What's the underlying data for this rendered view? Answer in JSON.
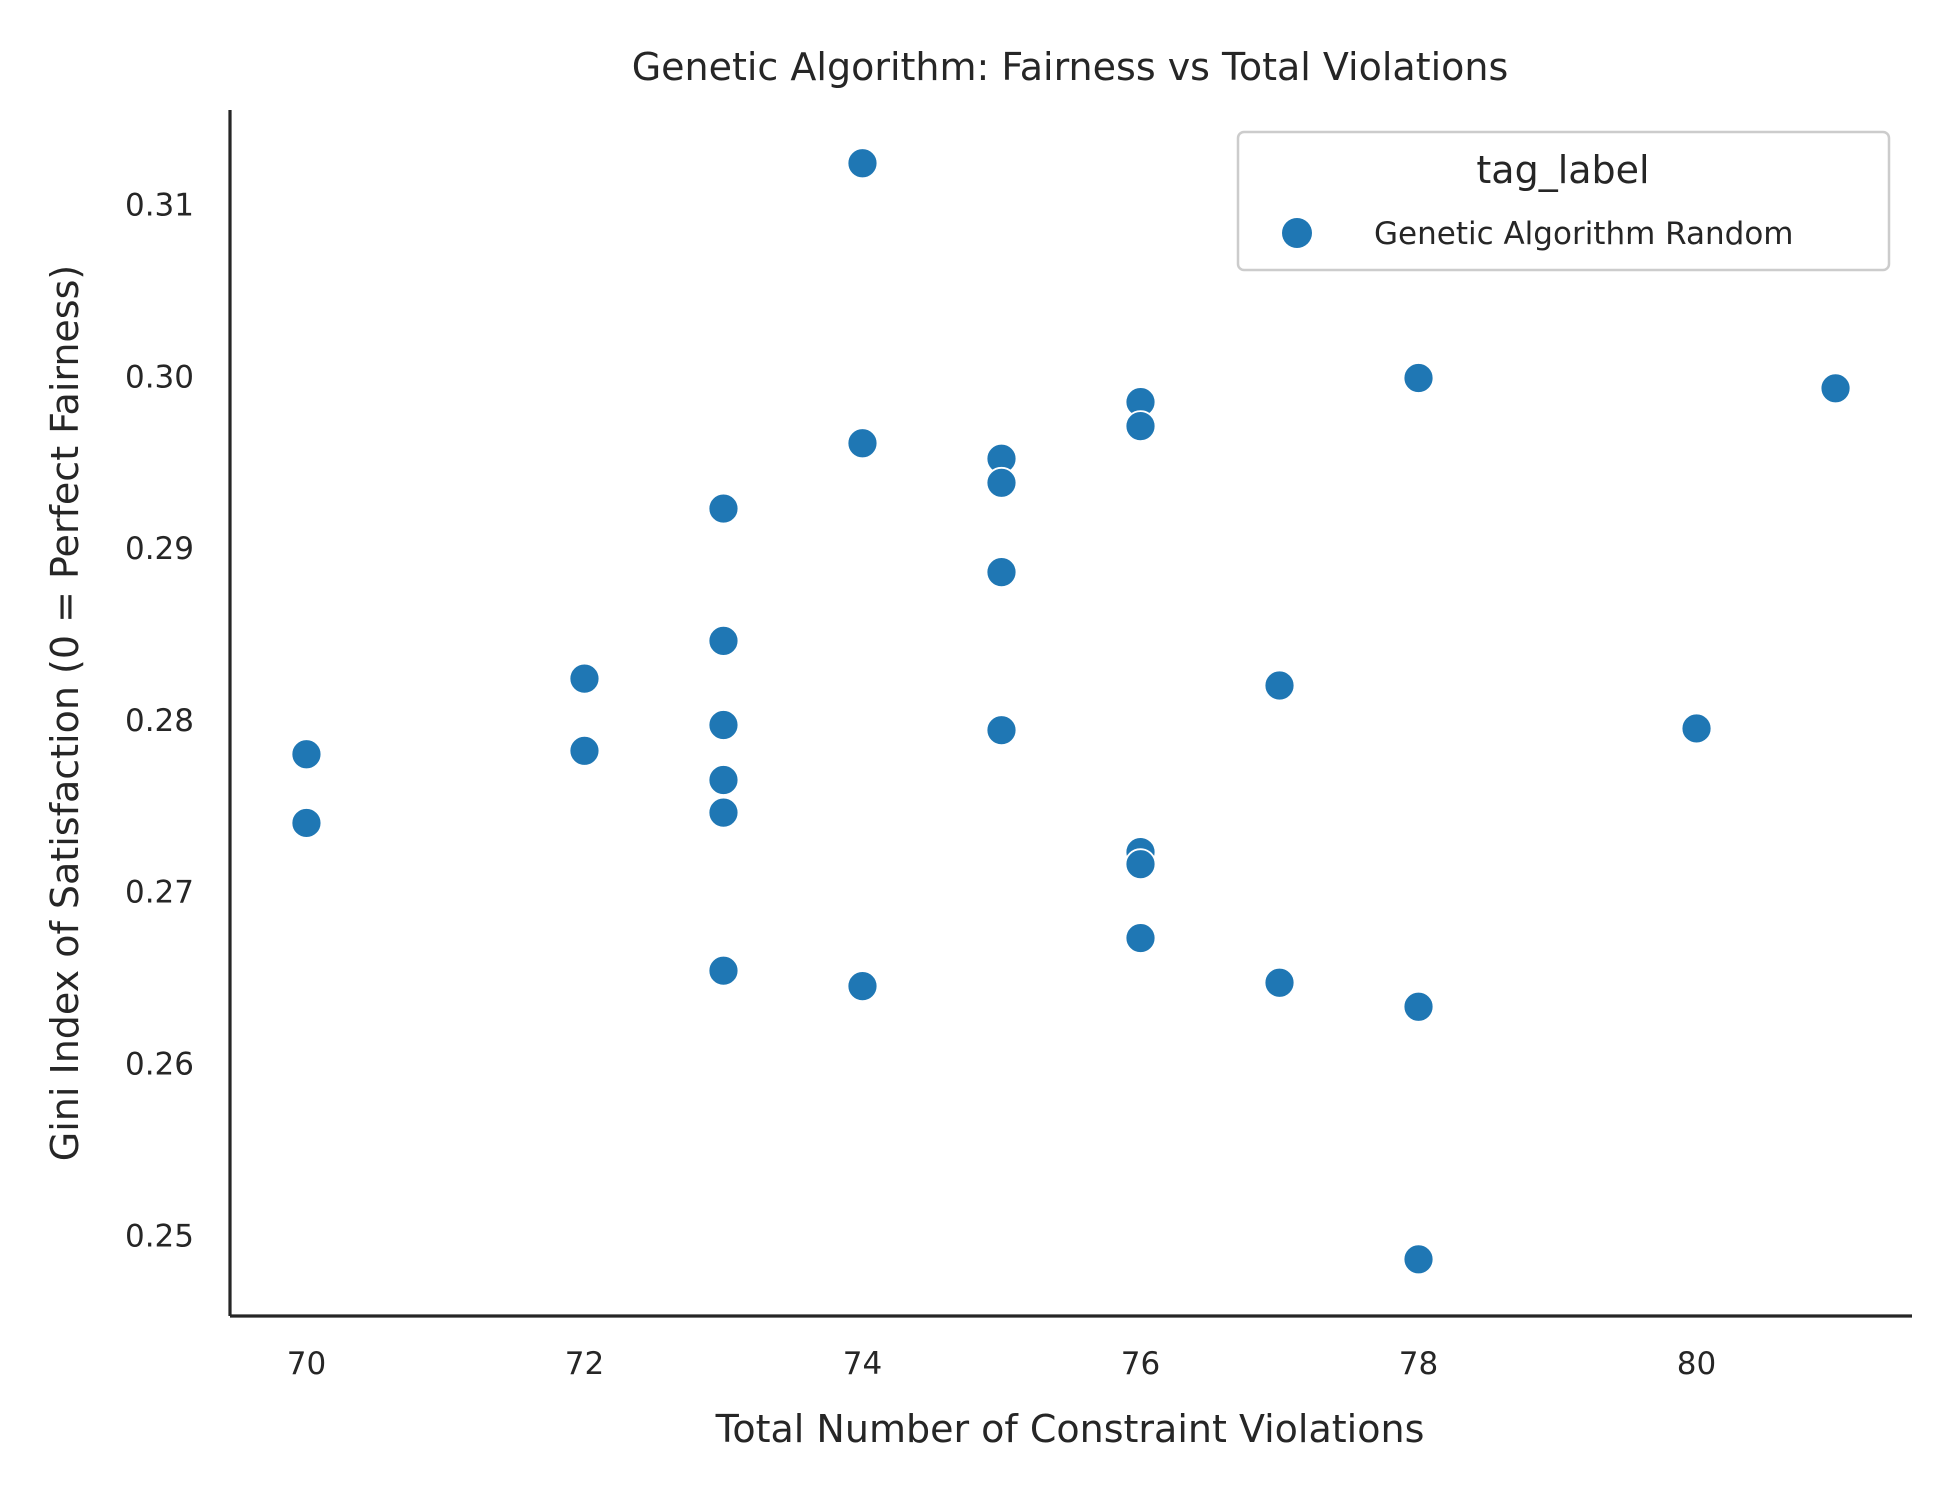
{
  "chart_data": {
    "type": "scatter",
    "title": "Genetic Algorithm: Fairness vs Total Violations",
    "xlabel": "Total Number of Constraint Violations",
    "ylabel": "Gini Index of Satisfaction (0 = Perfect Fairness)",
    "xlim": [
      69.45,
      81.55
    ],
    "ylim": [
      0.2453,
      0.3155
    ],
    "xticks": [
      70,
      72,
      74,
      76,
      78,
      80
    ],
    "xtick_labels": [
      "70",
      "72",
      "74",
      "76",
      "78",
      "80"
    ],
    "yticks": [
      0.25,
      0.26,
      0.27,
      0.28,
      0.29,
      0.3,
      0.31
    ],
    "ytick_labels": [
      "0.25",
      "0.26",
      "0.27",
      "0.28",
      "0.29",
      "0.30",
      "0.31"
    ],
    "grid": false,
    "legend": {
      "title": "tag_label",
      "placement": "top-right",
      "entries": [
        "Genetic Algorithm Random"
      ]
    },
    "series": [
      {
        "name": "Genetic Algorithm Random",
        "color": "#1f77b4",
        "points": [
          {
            "x": 70,
            "y": 0.278
          },
          {
            "x": 70,
            "y": 0.274
          },
          {
            "x": 72,
            "y": 0.2824
          },
          {
            "x": 72,
            "y": 0.2782
          },
          {
            "x": 73,
            "y": 0.2923
          },
          {
            "x": 73,
            "y": 0.2846
          },
          {
            "x": 73,
            "y": 0.2797
          },
          {
            "x": 73,
            "y": 0.2765
          },
          {
            "x": 73,
            "y": 0.2746
          },
          {
            "x": 73,
            "y": 0.2654
          },
          {
            "x": 74,
            "y": 0.3124
          },
          {
            "x": 74,
            "y": 0.2961
          },
          {
            "x": 74,
            "y": 0.2645
          },
          {
            "x": 75,
            "y": 0.2952
          },
          {
            "x": 75,
            "y": 0.2938
          },
          {
            "x": 75,
            "y": 0.2886
          },
          {
            "x": 75,
            "y": 0.2794
          },
          {
            "x": 76,
            "y": 0.2985
          },
          {
            "x": 76,
            "y": 0.2971
          },
          {
            "x": 76,
            "y": 0.2723
          },
          {
            "x": 76,
            "y": 0.2716
          },
          {
            "x": 76,
            "y": 0.2673
          },
          {
            "x": 77,
            "y": 0.282
          },
          {
            "x": 77,
            "y": 0.2647
          },
          {
            "x": 78,
            "y": 0.2999
          },
          {
            "x": 78,
            "y": 0.2633
          },
          {
            "x": 78,
            "y": 0.2486
          },
          {
            "x": 80,
            "y": 0.2795
          },
          {
            "x": 81,
            "y": 0.2993
          }
        ]
      }
    ]
  }
}
